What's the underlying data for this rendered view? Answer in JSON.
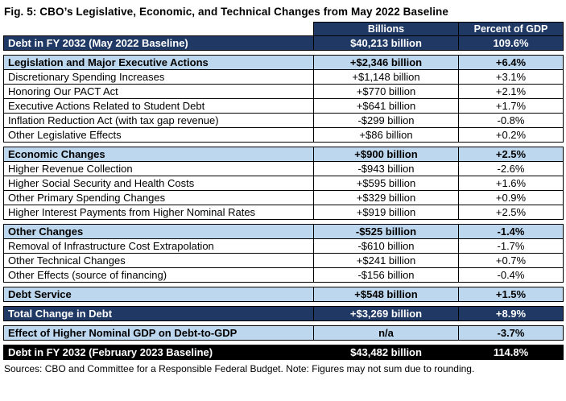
{
  "title": "Fig. 5: CBO’s Legislative, Economic, and Technical Changes from May 2022 Baseline",
  "footer": "Sources: CBO and Committee for a Responsible Federal Budget. Note: Figures may not sum due to rounding.",
  "colors": {
    "dark_navy": "#1F3864",
    "light_blue": "#BDD7EE",
    "black_row": "#000000",
    "border": "#000000"
  },
  "chart_data": {
    "type": "table",
    "title": "Fig. 5: CBO’s Legislative, Economic, and Technical Changes from May 2022 Baseline",
    "columns": [
      "",
      "Billions",
      "Percent of GDP"
    ],
    "rows": [
      {
        "style": "colheader",
        "label": "",
        "billions": "Billions",
        "pct": "Percent of GDP"
      },
      {
        "style": "dark",
        "label": "Debt in FY 2032 (May 2022 Baseline)",
        "billions": "$40,213 billion",
        "pct": "109.6%"
      },
      {
        "style": "gap"
      },
      {
        "style": "section",
        "label": "Legislation and Major Executive Actions",
        "billions": "+$2,346 billion",
        "pct": "+6.4%"
      },
      {
        "style": "item",
        "label": "Discretionary Spending Increases",
        "billions": "+$1,148 billion",
        "pct": "+3.1%"
      },
      {
        "style": "item",
        "label": "Honoring Our PACT Act",
        "billions": "+$770 billion",
        "pct": "+2.1%"
      },
      {
        "style": "item",
        "label": "Executive Actions Related to Student Debt",
        "billions": "+$641 billion",
        "pct": "+1.7%"
      },
      {
        "style": "item",
        "label": "Inflation Reduction Act (with tax gap revenue)",
        "billions": "-$299 billion",
        "pct": "-0.8%"
      },
      {
        "style": "item",
        "label": "Other Legislative Effects",
        "billions": "+$86 billion",
        "pct": "+0.2%"
      },
      {
        "style": "gap"
      },
      {
        "style": "section",
        "label": "Economic Changes",
        "billions": "+$900 billion",
        "pct": "+2.5%"
      },
      {
        "style": "item",
        "label": "Higher Revenue Collection",
        "billions": "-$943 billion",
        "pct": "-2.6%"
      },
      {
        "style": "item",
        "label": "Higher Social Security and Health Costs",
        "billions": "+$595 billion",
        "pct": "+1.6%"
      },
      {
        "style": "item",
        "label": "Other Primary Spending Changes",
        "billions": "+$329 billion",
        "pct": "+0.9%"
      },
      {
        "style": "item",
        "label": "Higher Interest Payments from Higher Nominal Rates",
        "billions": "+$919 billion",
        "pct": "+2.5%"
      },
      {
        "style": "gap"
      },
      {
        "style": "section",
        "label": "Other Changes",
        "billions": "-$525 billion",
        "pct": "-1.4%"
      },
      {
        "style": "item",
        "label": "Removal of Infrastructure Cost Extrapolation",
        "billions": "-$610 billion",
        "pct": "-1.7%"
      },
      {
        "style": "item",
        "label": "Other Technical Changes",
        "billions": "+$241 billion",
        "pct": "+0.7%"
      },
      {
        "style": "item",
        "label": "Other Effects (source of financing)",
        "billions": "-$156 billion",
        "pct": "-0.4%"
      },
      {
        "style": "gap"
      },
      {
        "style": "section",
        "label": "Debt Service",
        "billions": "+$548 billion",
        "pct": "+1.5%"
      },
      {
        "style": "gap"
      },
      {
        "style": "dark",
        "label": "Total Change in Debt",
        "billions": "+$3,269 billion",
        "pct": "+8.9%"
      },
      {
        "style": "gap"
      },
      {
        "style": "section",
        "label": "Effect of Higher Nominal GDP on Debt-to-GDP",
        "billions": "n/a",
        "pct": "-3.7%"
      },
      {
        "style": "gap"
      },
      {
        "style": "black",
        "label": "Debt in FY 2032 (February 2023 Baseline)",
        "billions": "$43,482 billion",
        "pct": "114.8%"
      }
    ]
  }
}
